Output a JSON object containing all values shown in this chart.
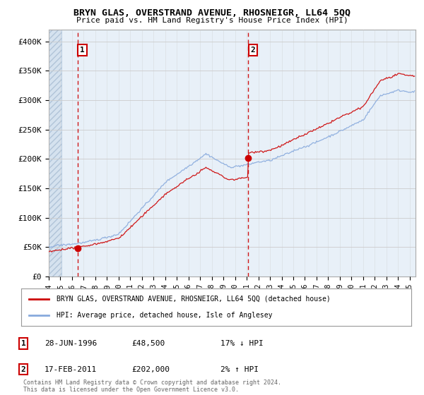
{
  "title": "BRYN GLAS, OVERSTRAND AVENUE, RHOSNEIGR, LL64 5QQ",
  "subtitle": "Price paid vs. HM Land Registry's House Price Index (HPI)",
  "ylim": [
    0,
    420000
  ],
  "yticks": [
    0,
    50000,
    100000,
    150000,
    200000,
    250000,
    300000,
    350000,
    400000
  ],
  "ytick_labels": [
    "£0",
    "£50K",
    "£100K",
    "£150K",
    "£200K",
    "£250K",
    "£300K",
    "£350K",
    "£400K"
  ],
  "xlim_start": 1994.0,
  "xlim_end": 2025.5,
  "sale1_year": 1996.49,
  "sale1_price": 48500,
  "sale1_label": "1",
  "sale1_date": "28-JUN-1996",
  "sale1_hpi_pct": "17% ↓ HPI",
  "sale2_year": 2011.12,
  "sale2_price": 202000,
  "sale2_label": "2",
  "sale2_date": "17-FEB-2011",
  "sale2_hpi_pct": "2% ↑ HPI",
  "legend_line1": "BRYN GLAS, OVERSTRAND AVENUE, RHOSNEIGR, LL64 5QQ (detached house)",
  "legend_line2": "HPI: Average price, detached house, Isle of Anglesey",
  "footnote": "Contains HM Land Registry data © Crown copyright and database right 2024.\nThis data is licensed under the Open Government Licence v3.0.",
  "sale_color": "#cc0000",
  "hpi_color": "#88aadd",
  "bg_color": "#e8f0f8",
  "grid_color": "#cccccc"
}
